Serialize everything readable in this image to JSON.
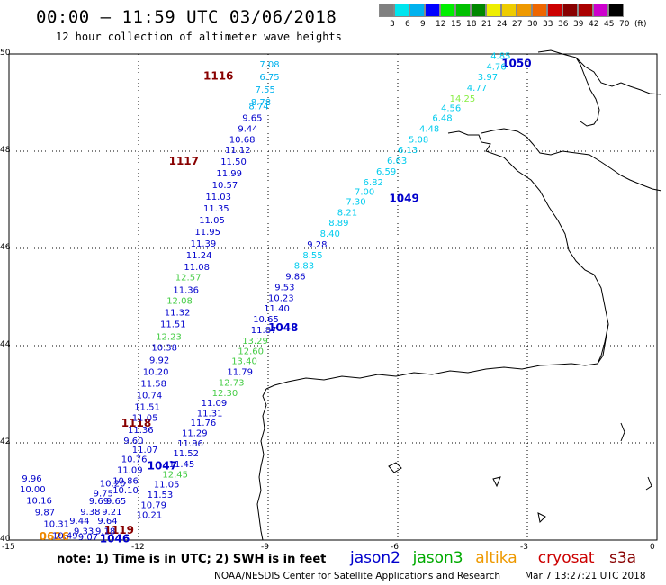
{
  "header": {
    "title": "00:00 – 11:59 UTC 03/06/2018",
    "subtitle": "12 hour collection of altimeter wave heights"
  },
  "legend_scale": {
    "ticks": [
      "3",
      "6",
      "9",
      "12",
      "15",
      "18",
      "21",
      "24",
      "27",
      "30",
      "33",
      "36",
      "39",
      "42",
      "45",
      "70",
      "(ft)"
    ],
    "colors": [
      "#808080",
      "#00e5ee",
      "#00b2ee",
      "#0000ff",
      "#00ee00",
      "#00c000",
      "#008800",
      "#eeee00",
      "#eecc00",
      "#ee9900",
      "#ee6600",
      "#cc0000",
      "#880000",
      "#aa0000",
      "#cc00cc",
      "#000000"
    ]
  },
  "axes": {
    "x_ticks": [
      "-15",
      "-12",
      "-9",
      "-6",
      "-3",
      "0"
    ],
    "y_ticks": [
      "50",
      "48",
      "46",
      "44",
      "42",
      "40"
    ],
    "lon_range": [
      -15,
      0
    ],
    "lat_range": [
      40,
      50
    ]
  },
  "tracks": [
    {
      "id": "1116",
      "color": "#880000",
      "label_pos": [
        -10.5,
        49.47
      ]
    },
    {
      "id": "1117",
      "color": "#880000",
      "label_pos": [
        -11.3,
        47.72
      ]
    },
    {
      "id": "1118",
      "color": "#880000",
      "label_pos": [
        -12.4,
        42.33
      ]
    },
    {
      "id": "1119",
      "color": "#880000",
      "label_pos": [
        -12.8,
        40.13
      ]
    },
    {
      "id": "1050",
      "color": "#0000cc",
      "label_pos": [
        -3.6,
        49.73
      ]
    },
    {
      "id": "1049",
      "color": "#0000cc",
      "label_pos": [
        -6.2,
        46.95
      ]
    },
    {
      "id": "1048",
      "color": "#0000cc",
      "label_pos": [
        -9.0,
        44.3
      ]
    },
    {
      "id": "1047",
      "color": "#0000cc",
      "label_pos": [
        -11.8,
        41.45
      ]
    },
    {
      "id": "1046",
      "color": "#0000cc",
      "label_pos": [
        -12.9,
        39.95
      ]
    },
    {
      "id": "0626",
      "color": "#ee8800",
      "label_pos": [
        -14.3,
        40.0
      ]
    }
  ],
  "wave_labels": [
    {
      "t": "7.08",
      "lon": -9.2,
      "lat": 49.72,
      "c": "#00b2ee"
    },
    {
      "t": "6.75",
      "lon": -9.2,
      "lat": 49.46,
      "c": "#00b2ee"
    },
    {
      "t": "7.55",
      "lon": -9.3,
      "lat": 49.2,
      "c": "#00b2ee"
    },
    {
      "t": "8.78",
      "lon": -9.4,
      "lat": 48.94,
      "c": "#00b2ee"
    },
    {
      "t": "8.74",
      "lon": -9.45,
      "lat": 48.86,
      "c": "#00b2ee"
    },
    {
      "t": "9.65",
      "lon": -9.6,
      "lat": 48.62,
      "c": "#0000cc"
    },
    {
      "t": "9.44",
      "lon": -9.7,
      "lat": 48.4,
      "c": "#0000cc"
    },
    {
      "t": "10.68",
      "lon": -9.9,
      "lat": 48.18,
      "c": "#0000cc"
    },
    {
      "t": "11.12",
      "lon": -10.0,
      "lat": 47.96,
      "c": "#0000cc"
    },
    {
      "t": "11.50",
      "lon": -10.1,
      "lat": 47.72,
      "c": "#0000cc"
    },
    {
      "t": "11.99",
      "lon": -10.2,
      "lat": 47.48,
      "c": "#0000cc"
    },
    {
      "t": "10.57",
      "lon": -10.3,
      "lat": 47.24,
      "c": "#0000cc"
    },
    {
      "t": "11.03",
      "lon": -10.45,
      "lat": 47.0,
      "c": "#0000cc"
    },
    {
      "t": "11.35",
      "lon": -10.5,
      "lat": 46.76,
      "c": "#0000cc"
    },
    {
      "t": "11.05",
      "lon": -10.6,
      "lat": 46.52,
      "c": "#0000cc"
    },
    {
      "t": "11.95",
      "lon": -10.7,
      "lat": 46.28,
      "c": "#0000cc"
    },
    {
      "t": "11.39",
      "lon": -10.8,
      "lat": 46.04,
      "c": "#0000cc"
    },
    {
      "t": "11.24",
      "lon": -10.9,
      "lat": 45.8,
      "c": "#0000cc"
    },
    {
      "t": "11.08",
      "lon": -10.95,
      "lat": 45.56,
      "c": "#0000cc"
    },
    {
      "t": "12.57",
      "lon": -11.15,
      "lat": 45.34,
      "c": "#44cc44"
    },
    {
      "t": "11.36",
      "lon": -11.2,
      "lat": 45.08,
      "c": "#0000cc"
    },
    {
      "t": "12.08",
      "lon": -11.35,
      "lat": 44.86,
      "c": "#44cc44"
    },
    {
      "t": "11.32",
      "lon": -11.4,
      "lat": 44.62,
      "c": "#0000cc"
    },
    {
      "t": "11.51",
      "lon": -11.5,
      "lat": 44.38,
      "c": "#0000cc"
    },
    {
      "t": "12.23",
      "lon": -11.6,
      "lat": 44.12,
      "c": "#44cc44"
    },
    {
      "t": "10.38",
      "lon": -11.7,
      "lat": 43.9,
      "c": "#0000cc"
    },
    {
      "t": "9.92",
      "lon": -11.75,
      "lat": 43.64,
      "c": "#0000cc"
    },
    {
      "t": "10.20",
      "lon": -11.9,
      "lat": 43.4,
      "c": "#0000cc"
    },
    {
      "t": "11.58",
      "lon": -11.95,
      "lat": 43.16,
      "c": "#0000cc"
    },
    {
      "t": "10.74",
      "lon": -12.05,
      "lat": 42.92,
      "c": "#0000cc"
    },
    {
      "t": "11.51",
      "lon": -12.1,
      "lat": 42.68,
      "c": "#0000cc"
    },
    {
      "t": "11.05",
      "lon": -12.15,
      "lat": 42.45,
      "c": "#0000cc"
    },
    {
      "t": "11.36",
      "lon": -12.25,
      "lat": 42.2,
      "c": "#0000cc"
    },
    {
      "t": "9.60",
      "lon": -12.35,
      "lat": 41.98,
      "c": "#0000cc"
    },
    {
      "t": "11.07",
      "lon": -12.15,
      "lat": 41.8,
      "c": "#0000cc"
    },
    {
      "t": "10.76",
      "lon": -12.4,
      "lat": 41.6,
      "c": "#0000cc"
    },
    {
      "t": "11.09",
      "lon": -12.5,
      "lat": 41.38,
      "c": "#0000cc"
    },
    {
      "t": "10.86",
      "lon": -12.6,
      "lat": 41.16,
      "c": "#0000cc"
    },
    {
      "t": "10.10",
      "lon": -12.6,
      "lat": 40.96,
      "c": "#0000cc"
    },
    {
      "t": "9.65",
      "lon": -12.75,
      "lat": 40.74,
      "c": "#0000cc"
    },
    {
      "t": "9.21",
      "lon": -12.85,
      "lat": 40.52,
      "c": "#0000cc"
    },
    {
      "t": "9.64",
      "lon": -12.95,
      "lat": 40.33,
      "c": "#0000cc"
    },
    {
      "t": "9.18",
      "lon": -13.0,
      "lat": 40.12,
      "c": "#0000cc"
    },
    {
      "t": "9.96",
      "lon": -14.7,
      "lat": 41.2,
      "c": "#0000cc"
    },
    {
      "t": "10.00",
      "lon": -14.75,
      "lat": 40.98,
      "c": "#0000cc"
    },
    {
      "t": "10.16",
      "lon": -14.6,
      "lat": 40.75,
      "c": "#0000cc"
    },
    {
      "t": "9.87",
      "lon": -14.4,
      "lat": 40.51,
      "c": "#0000cc"
    },
    {
      "t": "10.31",
      "lon": -14.2,
      "lat": 40.27,
      "c": "#0000cc"
    },
    {
      "t": "10.49",
      "lon": -14.0,
      "lat": 40.03,
      "c": "#0000cc"
    },
    {
      "t": "9.44",
      "lon": -13.6,
      "lat": 40.33,
      "c": "#0000cc"
    },
    {
      "t": "9.33",
      "lon": -13.5,
      "lat": 40.12,
      "c": "#0000cc"
    },
    {
      "t": "9.07",
      "lon": -13.4,
      "lat": 40.0,
      "c": "#0000cc"
    },
    {
      "t": "9.38",
      "lon": -13.35,
      "lat": 40.52,
      "c": "#0000cc"
    },
    {
      "t": "9.69",
      "lon": -13.15,
      "lat": 40.74,
      "c": "#0000cc"
    },
    {
      "t": "9.75",
      "lon": -13.05,
      "lat": 40.9,
      "c": "#0000cc"
    },
    {
      "t": "10.20",
      "lon": -12.9,
      "lat": 41.1,
      "c": "#0000cc"
    },
    {
      "t": "4.85",
      "lon": -3.85,
      "lat": 49.9,
      "c": "#00ccee"
    },
    {
      "t": "4.76",
      "lon": -3.95,
      "lat": 49.68,
      "c": "#00ccee"
    },
    {
      "t": "3.97",
      "lon": -4.15,
      "lat": 49.46,
      "c": "#00ccee"
    },
    {
      "t": "4.77",
      "lon": -4.4,
      "lat": 49.24,
      "c": "#00ccee"
    },
    {
      "t": "14.25",
      "lon": -4.8,
      "lat": 49.02,
      "c": "#88ee44"
    },
    {
      "t": "4.56",
      "lon": -5.0,
      "lat": 48.82,
      "c": "#00ccee"
    },
    {
      "t": "6.48",
      "lon": -5.2,
      "lat": 48.62,
      "c": "#00ccee"
    },
    {
      "t": "4.48",
      "lon": -5.5,
      "lat": 48.4,
      "c": "#00ccee"
    },
    {
      "t": "5.08",
      "lon": -5.75,
      "lat": 48.18,
      "c": "#00ccee"
    },
    {
      "t": "6.13",
      "lon": -6.0,
      "lat": 47.96,
      "c": "#00ccee"
    },
    {
      "t": "6.63",
      "lon": -6.25,
      "lat": 47.74,
      "c": "#00ccee"
    },
    {
      "t": "6.59",
      "lon": -6.5,
      "lat": 47.52,
      "c": "#00ccee"
    },
    {
      "t": "6.82",
      "lon": -6.8,
      "lat": 47.3,
      "c": "#00ccee"
    },
    {
      "t": "7.00",
      "lon": -7.0,
      "lat": 47.1,
      "c": "#00ccee"
    },
    {
      "t": "7.30",
      "lon": -7.2,
      "lat": 46.9,
      "c": "#00ccee"
    },
    {
      "t": "8.21",
      "lon": -7.4,
      "lat": 46.68,
      "c": "#00ccee"
    },
    {
      "t": "8.89",
      "lon": -7.6,
      "lat": 46.46,
      "c": "#00ccee"
    },
    {
      "t": "8.40",
      "lon": -7.8,
      "lat": 46.24,
      "c": "#00ccee"
    },
    {
      "t": "9.28",
      "lon": -8.1,
      "lat": 46.02,
      "c": "#0000cc"
    },
    {
      "t": "8.55",
      "lon": -8.2,
      "lat": 45.8,
      "c": "#00ccee"
    },
    {
      "t": "8.83",
      "lon": -8.4,
      "lat": 45.58,
      "c": "#00ccee"
    },
    {
      "t": "9.86",
      "lon": -8.6,
      "lat": 45.36,
      "c": "#0000cc"
    },
    {
      "t": "9.53",
      "lon": -8.85,
      "lat": 45.14,
      "c": "#0000cc"
    },
    {
      "t": "10.23",
      "lon": -9.0,
      "lat": 44.92,
      "c": "#0000cc"
    },
    {
      "t": "11.40",
      "lon": -9.1,
      "lat": 44.7,
      "c": "#0000cc"
    },
    {
      "t": "10.65",
      "lon": -9.35,
      "lat": 44.48,
      "c": "#0000cc"
    },
    {
      "t": "11.87",
      "lon": -9.4,
      "lat": 44.26,
      "c": "#0000cc"
    },
    {
      "t": "13.29",
      "lon": -9.6,
      "lat": 44.04,
      "c": "#44cc44"
    },
    {
      "t": "12.60",
      "lon": -9.7,
      "lat": 43.82,
      "c": "#44cc44"
    },
    {
      "t": "13.40",
      "lon": -9.85,
      "lat": 43.62,
      "c": "#44cc44"
    },
    {
      "t": "11.79",
      "lon": -9.95,
      "lat": 43.4,
      "c": "#0000cc"
    },
    {
      "t": "12.73",
      "lon": -10.15,
      "lat": 43.18,
      "c": "#44cc44"
    },
    {
      "t": "12.30",
      "lon": -10.3,
      "lat": 42.96,
      "c": "#44cc44"
    },
    {
      "t": "11.09",
      "lon": -10.55,
      "lat": 42.76,
      "c": "#0000cc"
    },
    {
      "t": "11.31",
      "lon": -10.65,
      "lat": 42.55,
      "c": "#0000cc"
    },
    {
      "t": "11.76",
      "lon": -10.8,
      "lat": 42.35,
      "c": "#0000cc"
    },
    {
      "t": "11.29",
      "lon": -11.0,
      "lat": 42.14,
      "c": "#0000cc"
    },
    {
      "t": "11.86",
      "lon": -11.1,
      "lat": 41.93,
      "c": "#0000cc"
    },
    {
      "t": "11.52",
      "lon": -11.2,
      "lat": 41.72,
      "c": "#0000cc"
    },
    {
      "t": "11.45",
      "lon": -11.3,
      "lat": 41.5,
      "c": "#0000cc"
    },
    {
      "t": "12.45",
      "lon": -11.45,
      "lat": 41.29,
      "c": "#44cc44"
    },
    {
      "t": "11.05",
      "lon": -11.65,
      "lat": 41.08,
      "c": "#0000cc"
    },
    {
      "t": "11.53",
      "lon": -11.8,
      "lat": 40.87,
      "c": "#0000cc"
    },
    {
      "t": "10.79",
      "lon": -11.95,
      "lat": 40.66,
      "c": "#0000cc"
    },
    {
      "t": "10.21",
      "lon": -12.05,
      "lat": 40.45,
      "c": "#0000cc"
    }
  ],
  "footer": {
    "note": "note:  1) Time is in UTC;  2) SWH is in feet",
    "credit": "NOAA/NESDIS Center for Satellite Applications and Research",
    "timestamp": "Mar  7 13:27:21 UTC 2018"
  },
  "satellites": [
    {
      "name": "jason2",
      "color": "#0000cc"
    },
    {
      "name": "jason3",
      "color": "#00aa00"
    },
    {
      "name": "altika",
      "color": "#ee9900"
    },
    {
      "name": "cryosat",
      "color": "#cc0000"
    },
    {
      "name": "s3a",
      "color": "#880000"
    }
  ]
}
